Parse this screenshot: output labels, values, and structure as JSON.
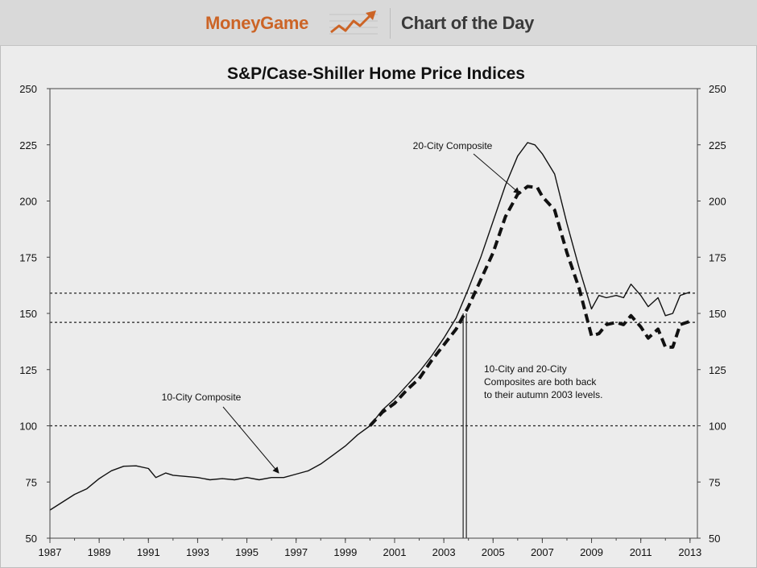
{
  "header": {
    "brand": "MoneyGame",
    "section_title": "Chart of the Day",
    "brand_color": "#cc6426"
  },
  "chart_data": {
    "type": "line",
    "title": "S&P/Case-Shiller Home Price Indices",
    "xlabel": "",
    "ylabel": "",
    "xlim": [
      1987,
      2013.3
    ],
    "ylim": [
      50,
      250
    ],
    "x_ticks": [
      "1987",
      "1989",
      "1991",
      "1993",
      "1995",
      "1997",
      "1999",
      "2001",
      "2003",
      "2005",
      "2007",
      "2009",
      "2011",
      "2013"
    ],
    "x_tick_values": [
      1987,
      1989,
      1991,
      1993,
      1995,
      1997,
      1999,
      2001,
      2003,
      2005,
      2007,
      2009,
      2011,
      2013
    ],
    "y_ticks": [
      "50",
      "75",
      "100",
      "125",
      "150",
      "175",
      "200",
      "225",
      "250"
    ],
    "y_tick_values": [
      50,
      75,
      100,
      125,
      150,
      175,
      200,
      225,
      250
    ],
    "reference_lines": [
      159,
      146,
      100
    ],
    "event_marker_x": 2003.85,
    "series": [
      {
        "name": "10-City Composite",
        "style": "solid",
        "points": [
          [
            1987,
            62.5
          ],
          [
            1987.5,
            66
          ],
          [
            1988,
            69.5
          ],
          [
            1988.5,
            72
          ],
          [
            1989,
            76.5
          ],
          [
            1989.5,
            80
          ],
          [
            1990,
            82
          ],
          [
            1990.5,
            82.2
          ],
          [
            1991,
            81
          ],
          [
            1991.3,
            77
          ],
          [
            1991.7,
            79
          ],
          [
            1992,
            78
          ],
          [
            1992.5,
            77.5
          ],
          [
            1993,
            77
          ],
          [
            1993.5,
            76
          ],
          [
            1994,
            76.5
          ],
          [
            1994.5,
            76
          ],
          [
            1995,
            77
          ],
          [
            1995.5,
            76
          ],
          [
            1996,
            77
          ],
          [
            1996.5,
            77
          ],
          [
            1997,
            78.5
          ],
          [
            1997.5,
            80
          ],
          [
            1998,
            83
          ],
          [
            1998.5,
            87
          ],
          [
            1999,
            91
          ],
          [
            1999.5,
            96
          ],
          [
            2000,
            100
          ],
          [
            2000.5,
            107
          ],
          [
            2001,
            112
          ],
          [
            2001.5,
            118
          ],
          [
            2002,
            124
          ],
          [
            2002.5,
            131
          ],
          [
            2003,
            139
          ],
          [
            2003.5,
            148
          ],
          [
            2004,
            161
          ],
          [
            2004.5,
            175
          ],
          [
            2005,
            191
          ],
          [
            2005.5,
            207
          ],
          [
            2006,
            220
          ],
          [
            2006.4,
            226
          ],
          [
            2006.7,
            225
          ],
          [
            2007,
            221
          ],
          [
            2007.5,
            212
          ],
          [
            2008,
            190
          ],
          [
            2008.5,
            170
          ],
          [
            2009,
            152
          ],
          [
            2009.3,
            158
          ],
          [
            2009.6,
            157
          ],
          [
            2010,
            158
          ],
          [
            2010.3,
            157
          ],
          [
            2010.6,
            163
          ],
          [
            2011,
            158
          ],
          [
            2011.3,
            153
          ],
          [
            2011.7,
            157
          ],
          [
            2012,
            149
          ],
          [
            2012.3,
            150
          ],
          [
            2012.6,
            158
          ],
          [
            2013,
            159.5
          ]
        ]
      },
      {
        "name": "20-City Composite",
        "style": "dashed",
        "points": [
          [
            2000,
            100
          ],
          [
            2000.5,
            106
          ],
          [
            2001,
            110
          ],
          [
            2001.5,
            116
          ],
          [
            2002,
            121
          ],
          [
            2002.5,
            129
          ],
          [
            2003,
            136
          ],
          [
            2003.5,
            143
          ],
          [
            2004,
            153
          ],
          [
            2004.5,
            165
          ],
          [
            2005,
            177
          ],
          [
            2005.5,
            193
          ],
          [
            2006,
            203
          ],
          [
            2006.4,
            206.5
          ],
          [
            2006.8,
            206
          ],
          [
            2007,
            202
          ],
          [
            2007.5,
            196
          ],
          [
            2008,
            177
          ],
          [
            2008.5,
            161
          ],
          [
            2009,
            140
          ],
          [
            2009.3,
            141
          ],
          [
            2009.6,
            145
          ],
          [
            2010,
            146
          ],
          [
            2010.3,
            145
          ],
          [
            2010.6,
            149
          ],
          [
            2011,
            144
          ],
          [
            2011.3,
            139
          ],
          [
            2011.7,
            143
          ],
          [
            2012,
            135
          ],
          [
            2012.3,
            135
          ],
          [
            2012.6,
            145
          ],
          [
            2013,
            146.5
          ]
        ]
      }
    ],
    "annotations": [
      {
        "text": "20-City Composite",
        "arrow": true
      },
      {
        "text": "10-City Composite",
        "arrow": true
      },
      {
        "text": "10-City and 20-City Composites are both back to their autumn 2003 levels.",
        "lines": [
          "10-City and 20-City",
          "Composites are both back",
          "to their autumn 2003 levels."
        ]
      }
    ]
  }
}
